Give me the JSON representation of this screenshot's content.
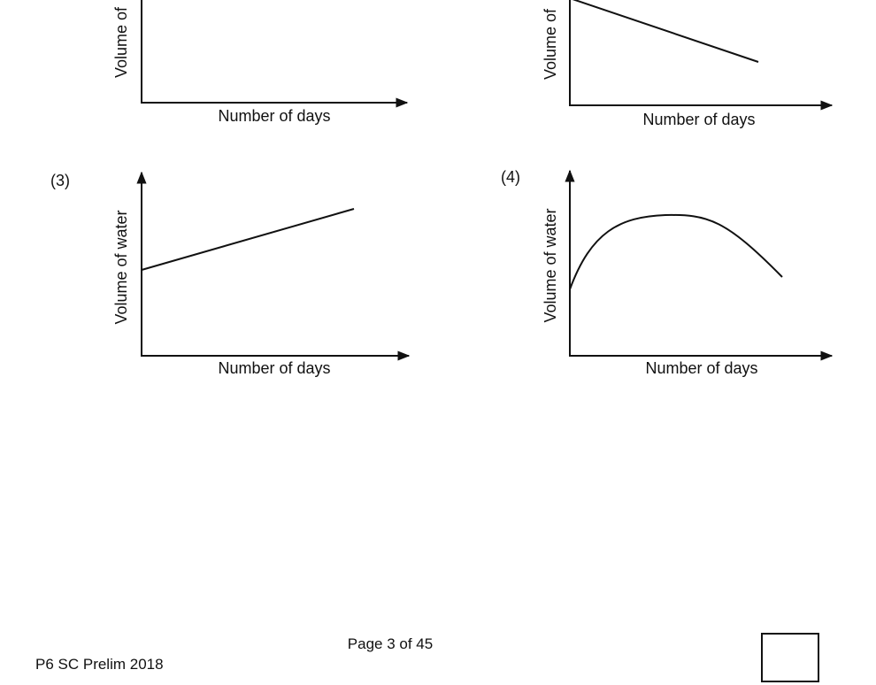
{
  "graphs": [
    {
      "y_label": "Volume of",
      "x_label": "Number of days"
    },
    {
      "y_label": "Volume of",
      "x_label": "Number of days"
    },
    {
      "label": "(3)",
      "y_label": "Volume of water",
      "x_label": "Number of days"
    },
    {
      "label": "(4)",
      "y_label": "Volume of water",
      "x_label": "Number of days"
    }
  ],
  "footer": {
    "page": "Page 3 of 45",
    "code": "P6 SC Prelim 2018"
  }
}
